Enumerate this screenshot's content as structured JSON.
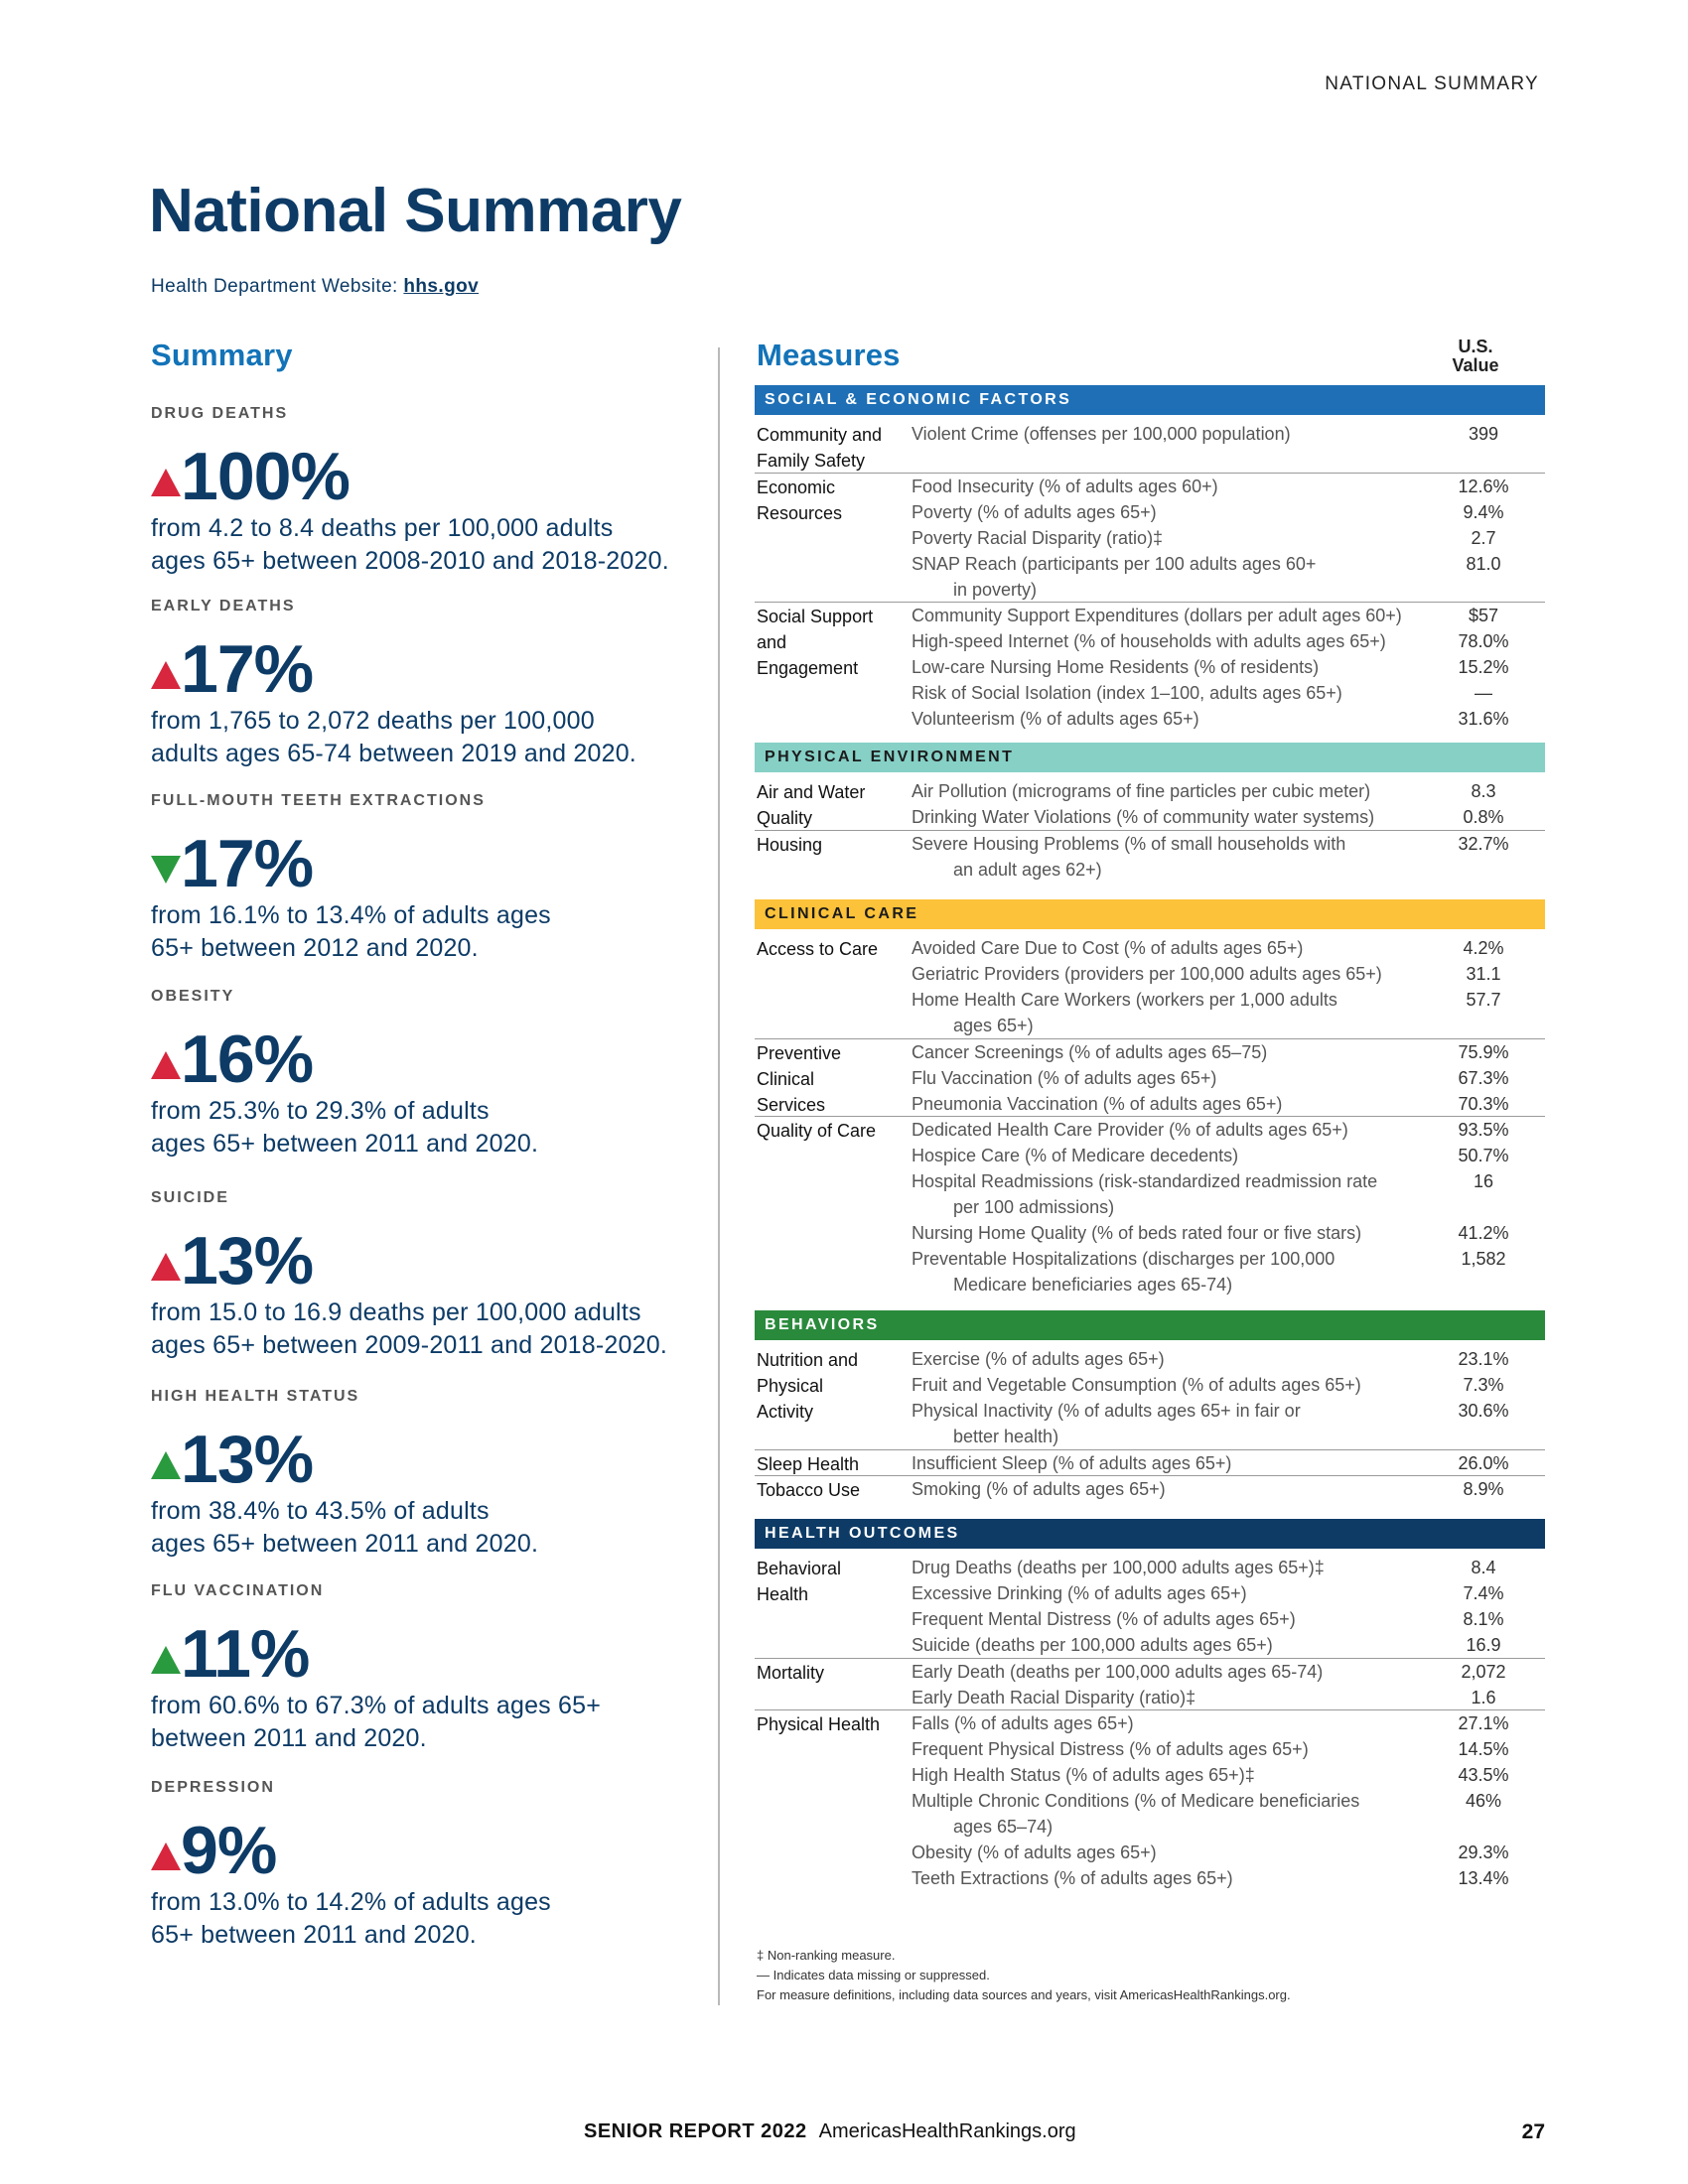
{
  "header": {
    "running_head": "NATIONAL SUMMARY"
  },
  "page_title": "National Summary",
  "website": {
    "label": "Health Department Website:",
    "link": "hhs.gov"
  },
  "summary": {
    "heading": "Summary",
    "items": [
      {
        "label": "DRUG DEATHS",
        "direction": "up",
        "color": "#d7263d",
        "pct": "100%",
        "desc": [
          "from 4.2 to 8.4 deaths per 100,000 adults",
          "ages 65+ between 2008-2010 and 2018-2020."
        ]
      },
      {
        "label": "EARLY DEATHS",
        "direction": "up",
        "color": "#d7263d",
        "pct": "17%",
        "desc": [
          "from 1,765 to 2,072 deaths per 100,000",
          "adults ages 65-74 between 2019 and 2020."
        ]
      },
      {
        "label": "FULL-MOUTH TEETH EXTRACTIONS",
        "direction": "down",
        "color": "#2a9a3f",
        "pct": "17%",
        "desc": [
          "from 16.1% to 13.4% of adults ages",
          "65+ between 2012 and 2020."
        ]
      },
      {
        "label": "OBESITY",
        "direction": "up",
        "color": "#d7263d",
        "pct": "16%",
        "desc": [
          "from 25.3% to 29.3% of adults",
          "ages 65+ between 2011 and 2020."
        ]
      },
      {
        "label": "SUICIDE",
        "direction": "up",
        "color": "#d7263d",
        "pct": "13%",
        "desc": [
          "from 15.0 to 16.9 deaths per 100,000 adults",
          "ages 65+ between 2009-2011 and 2018-2020."
        ]
      },
      {
        "label": "HIGH HEALTH STATUS",
        "direction": "up",
        "color": "#2a9a3f",
        "pct": "13%",
        "desc": [
          "from 38.4% to 43.5% of adults",
          "ages 65+ between 2011 and 2020."
        ]
      },
      {
        "label": "FLU VACCINATION",
        "direction": "up",
        "color": "#2a9a3f",
        "pct": "11%",
        "desc": [
          "from 60.6% to 67.3% of adults ages 65+",
          "between 2011 and 2020."
        ]
      },
      {
        "label": "DEPRESSION",
        "direction": "up",
        "color": "#d7263d",
        "pct": "9%",
        "desc": [
          "from 13.0% to 14.2% of adults ages",
          "65+ between 2011 and 2020."
        ]
      }
    ]
  },
  "measures": {
    "heading": "Measures",
    "value_header": [
      "U.S.",
      "Value"
    ],
    "categories": [
      {
        "title": "SOCIAL & ECONOMIC FACTORS",
        "groups": [
          {
            "name": [
              "Community and",
              "Family Safety"
            ],
            "rows": [
              {
                "measure": [
                  "Violent Crime (offenses per 100,000 population)"
                ],
                "value": "399"
              }
            ]
          },
          {
            "name": [
              "Economic",
              "Resources"
            ],
            "rows": [
              {
                "measure": [
                  "Food Insecurity (% of adults ages 60+)"
                ],
                "value": "12.6%"
              },
              {
                "measure": [
                  "Poverty (% of adults ages 65+)"
                ],
                "value": "9.4%"
              },
              {
                "measure": [
                  "Poverty Racial Disparity (ratio)‡"
                ],
                "value": "2.7"
              },
              {
                "measure": [
                  "SNAP Reach (participants per 100 adults ages 60+",
                  "in poverty)"
                ],
                "value": "81.0"
              }
            ]
          },
          {
            "name": [
              "Social Support",
              "and",
              "Engagement"
            ],
            "rows": [
              {
                "measure": [
                  "Community Support Expenditures (dollars per adult ages 60+)"
                ],
                "value": "$57"
              },
              {
                "measure": [
                  "High-speed Internet (% of households with adults ages 65+)"
                ],
                "value": "78.0%"
              },
              {
                "measure": [
                  "Low-care Nursing Home Residents (% of residents)"
                ],
                "value": "15.2%"
              },
              {
                "measure": [
                  "Risk of Social Isolation (index 1–100, adults ages 65+)"
                ],
                "value": "—"
              },
              {
                "measure": [
                  "Volunteerism (% of adults ages 65+)"
                ],
                "value": "31.6%"
              }
            ]
          }
        ]
      },
      {
        "title": "PHYSICAL ENVIRONMENT",
        "groups": [
          {
            "name": [
              "Air and Water",
              "Quality"
            ],
            "rows": [
              {
                "measure": [
                  "Air Pollution (micrograms of fine particles per cubic meter)"
                ],
                "value": "8.3"
              },
              {
                "measure": [
                  "Drinking Water Violations (% of community water systems)"
                ],
                "value": "0.8%"
              }
            ]
          },
          {
            "name": [
              "Housing"
            ],
            "rows": [
              {
                "measure": [
                  "Severe Housing Problems (% of small households with",
                  "an adult ages 62+)"
                ],
                "value": "32.7%"
              }
            ]
          }
        ]
      },
      {
        "title": "CLINICAL CARE",
        "groups": [
          {
            "name": [
              "Access to Care"
            ],
            "rows": [
              {
                "measure": [
                  "Avoided Care Due to Cost (% of adults ages 65+)"
                ],
                "value": "4.2%"
              },
              {
                "measure": [
                  "Geriatric Providers (providers per 100,000 adults ages 65+)"
                ],
                "value": "31.1"
              },
              {
                "measure": [
                  "Home Health Care Workers (workers per 1,000 adults",
                  "ages 65+)"
                ],
                "value": "57.7"
              }
            ]
          },
          {
            "name": [
              "Preventive",
              "Clinical",
              "Services"
            ],
            "rows": [
              {
                "measure": [
                  "Cancer Screenings (% of adults ages 65–75)"
                ],
                "value": "75.9%"
              },
              {
                "measure": [
                  "Flu Vaccination (% of adults ages 65+)"
                ],
                "value": "67.3%"
              },
              {
                "measure": [
                  "Pneumonia Vaccination (% of adults ages 65+)"
                ],
                "value": "70.3%"
              }
            ]
          },
          {
            "name": [
              "Quality of Care"
            ],
            "rows": [
              {
                "measure": [
                  "Dedicated Health Care Provider (% of adults ages 65+)"
                ],
                "value": "93.5%"
              },
              {
                "measure": [
                  "Hospice Care (% of Medicare decedents)"
                ],
                "value": "50.7%"
              },
              {
                "measure": [
                  "Hospital Readmissions (risk-standardized readmission rate",
                  "per 100 admissions)"
                ],
                "value": "16"
              },
              {
                "measure": [
                  "Nursing Home Quality (% of beds rated four or five stars)"
                ],
                "value": "41.2%"
              },
              {
                "measure": [
                  "Preventable Hospitalizations (discharges per 100,000",
                  "Medicare beneficiaries ages 65-74)"
                ],
                "value": "1,582"
              }
            ]
          }
        ]
      },
      {
        "title": "BEHAVIORS",
        "groups": [
          {
            "name": [
              "Nutrition and",
              "Physical",
              "Activity"
            ],
            "rows": [
              {
                "measure": [
                  "Exercise (% of adults ages 65+)"
                ],
                "value": "23.1%"
              },
              {
                "measure": [
                  "Fruit and Vegetable Consumption (% of adults ages 65+)"
                ],
                "value": "7.3%"
              },
              {
                "measure": [
                  "Physical Inactivity (% of adults ages 65+ in fair or",
                  "better health)"
                ],
                "value": "30.6%"
              }
            ]
          },
          {
            "name": [
              "Sleep Health"
            ],
            "rows": [
              {
                "measure": [
                  "Insufficient Sleep (% of adults ages 65+)"
                ],
                "value": "26.0%"
              }
            ]
          },
          {
            "name": [
              "Tobacco Use"
            ],
            "rows": [
              {
                "measure": [
                  "Smoking (% of adults ages 65+)"
                ],
                "value": "8.9%"
              }
            ]
          }
        ]
      },
      {
        "title": "HEALTH OUTCOMES",
        "groups": [
          {
            "name": [
              "Behavioral",
              "Health"
            ],
            "rows": [
              {
                "measure": [
                  "Drug Deaths (deaths per 100,000 adults ages 65+)‡"
                ],
                "value": "8.4"
              },
              {
                "measure": [
                  "Excessive Drinking (% of adults ages 65+)"
                ],
                "value": "7.4%"
              },
              {
                "measure": [
                  "Frequent Mental Distress (% of adults ages 65+)"
                ],
                "value": "8.1%"
              },
              {
                "measure": [
                  "Suicide (deaths per 100,000 adults ages 65+)"
                ],
                "value": "16.9"
              }
            ]
          },
          {
            "name": [
              "Mortality"
            ],
            "rows": [
              {
                "measure": [
                  "Early Death (deaths per 100,000 adults ages 65-74)"
                ],
                "value": "2,072"
              },
              {
                "measure": [
                  "Early Death Racial Disparity (ratio)‡"
                ],
                "value": "1.6"
              }
            ]
          },
          {
            "name": [
              "Physical Health"
            ],
            "rows": [
              {
                "measure": [
                  "Falls (% of adults ages 65+)"
                ],
                "value": "27.1%"
              },
              {
                "measure": [
                  "Frequent Physical Distress (% of adults ages 65+)"
                ],
                "value": "14.5%"
              },
              {
                "measure": [
                  "High Health Status (% of adults ages 65+)‡"
                ],
                "value": "43.5%"
              },
              {
                "measure": [
                  "Multiple Chronic Conditions (% of Medicare beneficiaries",
                  "ages 65–74)"
                ],
                "value": "46%"
              },
              {
                "measure": [
                  "Obesity (% of adults ages 65+)"
                ],
                "value": "29.3%"
              },
              {
                "measure": [
                  "Teeth Extractions (% of adults ages 65+)"
                ],
                "value": "13.4%"
              }
            ]
          }
        ]
      }
    ]
  },
  "footnotes": [
    "‡ Non-ranking measure.",
    "— Indicates data missing or suppressed.",
    "For measure definitions, including data sources and years, visit AmericasHealthRankings.org."
  ],
  "footer": {
    "report": "SENIOR REPORT 2022",
    "site": "AmericasHealthRankings.org",
    "page_number": "27"
  }
}
